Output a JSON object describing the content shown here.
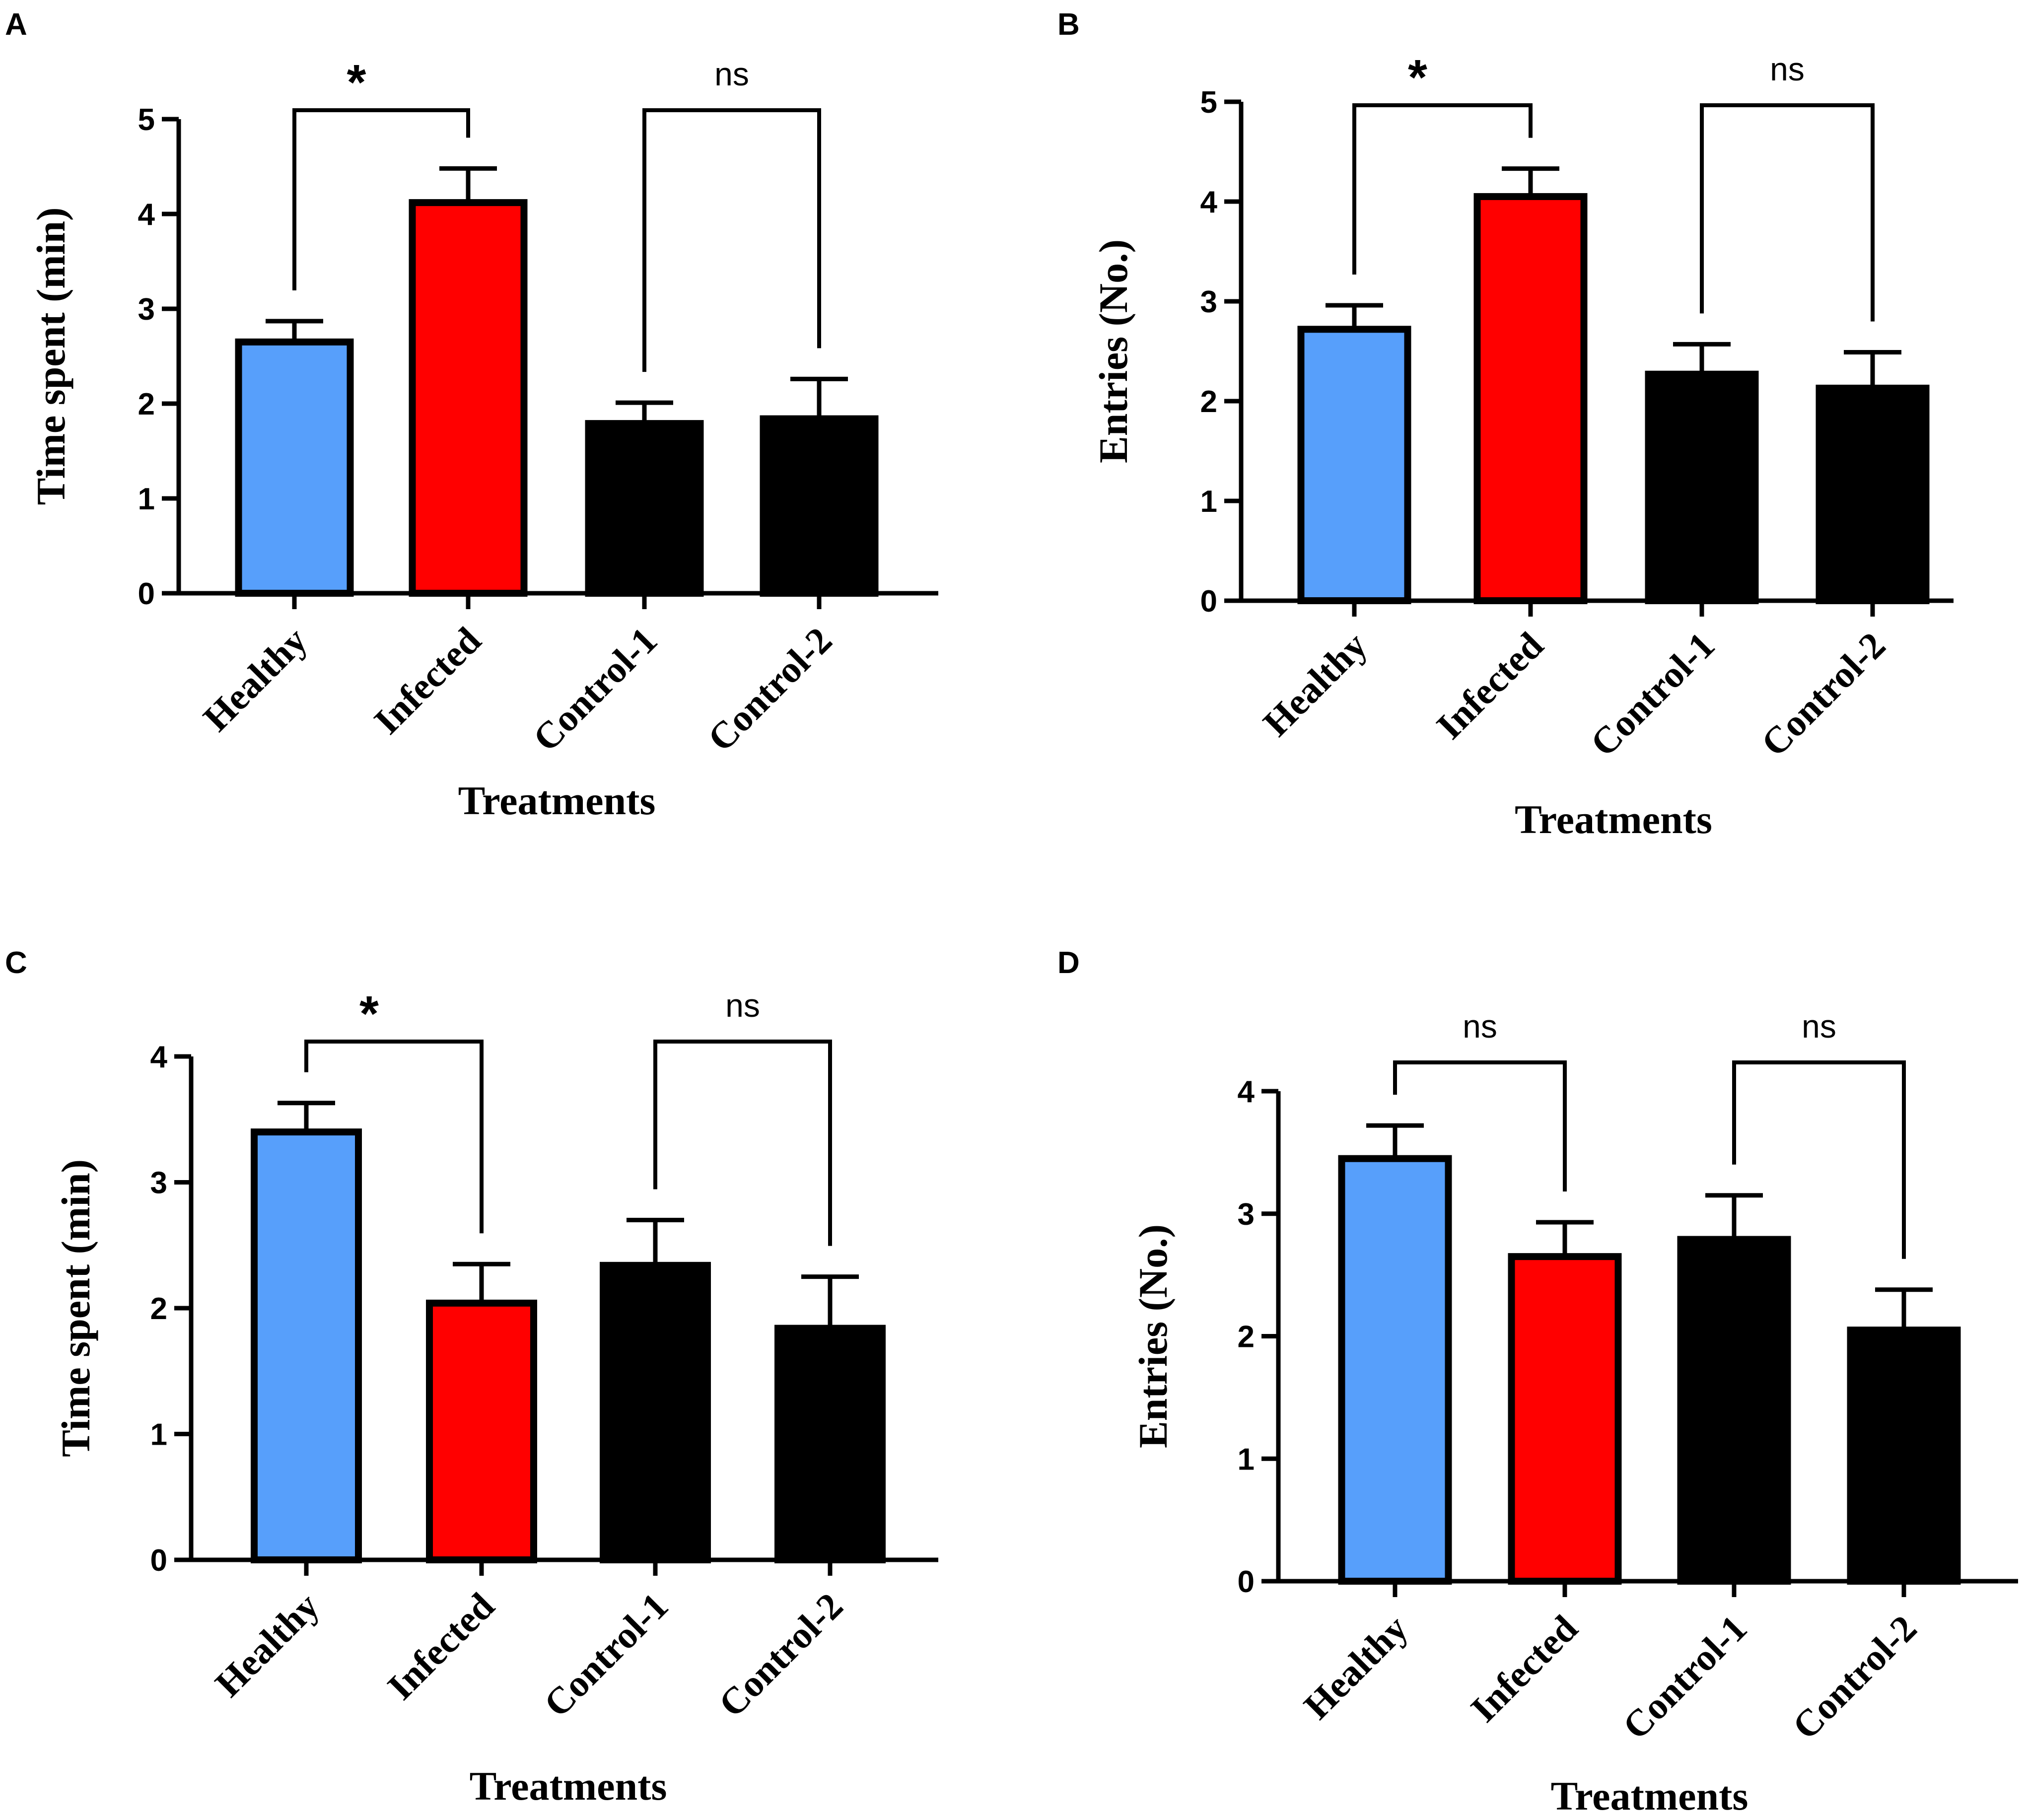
{
  "figure": {
    "colors": {
      "healthy": "#579ffb",
      "infected": "#ff0000",
      "control": "#000000",
      "frame": "#000000"
    }
  },
  "chart_data": [
    {
      "panel": "A",
      "type": "bar",
      "categories": [
        "Healthy",
        "Infected",
        "Control-1",
        "Control-2"
      ],
      "values": [
        2.65,
        4.12,
        1.79,
        1.84
      ],
      "errors": [
        0.22,
        0.36,
        0.22,
        0.42
      ],
      "colors": [
        "#579ffb",
        "#ff0000",
        "#000000",
        "#000000"
      ],
      "ylabel": "Time spent (min)",
      "xlabel": "Treatments",
      "ylim": [
        0,
        5
      ],
      "yticks": [
        0,
        1,
        2,
        3,
        4,
        5
      ],
      "comparisons": [
        {
          "from": 0,
          "to": 1,
          "label": "*"
        },
        {
          "from": 2,
          "to": 3,
          "label": "ns"
        }
      ]
    },
    {
      "panel": "B",
      "type": "bar",
      "categories": [
        "Healthy",
        "Infected",
        "Control-1",
        "Control-2"
      ],
      "values": [
        2.72,
        4.05,
        2.27,
        2.13
      ],
      "errors": [
        0.24,
        0.28,
        0.3,
        0.36
      ],
      "colors": [
        "#579ffb",
        "#ff0000",
        "#000000",
        "#000000"
      ],
      "ylabel": "Entries (No.)",
      "xlabel": "Treatments",
      "ylim": [
        0,
        5
      ],
      "yticks": [
        0,
        1,
        2,
        3,
        4,
        5
      ],
      "comparisons": [
        {
          "from": 0,
          "to": 1,
          "label": "*"
        },
        {
          "from": 2,
          "to": 3,
          "label": "ns"
        }
      ]
    },
    {
      "panel": "C",
      "type": "bar",
      "categories": [
        "Healthy",
        "Infected",
        "Control-1",
        "Control-2"
      ],
      "values": [
        3.4,
        2.04,
        2.34,
        1.84
      ],
      "errors": [
        0.23,
        0.31,
        0.36,
        0.41
      ],
      "colors": [
        "#579ffb",
        "#ff0000",
        "#000000",
        "#000000"
      ],
      "ylabel": "Time spent (min)",
      "xlabel": "Treatments",
      "ylim": [
        0,
        4
      ],
      "yticks": [
        0,
        1,
        2,
        3,
        4
      ],
      "comparisons": [
        {
          "from": 0,
          "to": 1,
          "label": "*"
        },
        {
          "from": 2,
          "to": 3,
          "label": "ns"
        }
      ]
    },
    {
      "panel": "D",
      "type": "bar",
      "categories": [
        "Healthy",
        "Infected",
        "Control-1",
        "Control-2"
      ],
      "values": [
        3.45,
        2.65,
        2.79,
        2.05
      ],
      "errors": [
        0.27,
        0.28,
        0.36,
        0.33
      ],
      "colors": [
        "#579ffb",
        "#ff0000",
        "#000000",
        "#000000"
      ],
      "ylabel": "Entries (No.)",
      "xlabel": "Treatments",
      "ylim": [
        0,
        4
      ],
      "yticks": [
        0,
        1,
        2,
        3,
        4
      ],
      "comparisons": [
        {
          "from": 0,
          "to": 1,
          "label": "ns"
        },
        {
          "from": 2,
          "to": 3,
          "label": "ns"
        }
      ]
    }
  ]
}
